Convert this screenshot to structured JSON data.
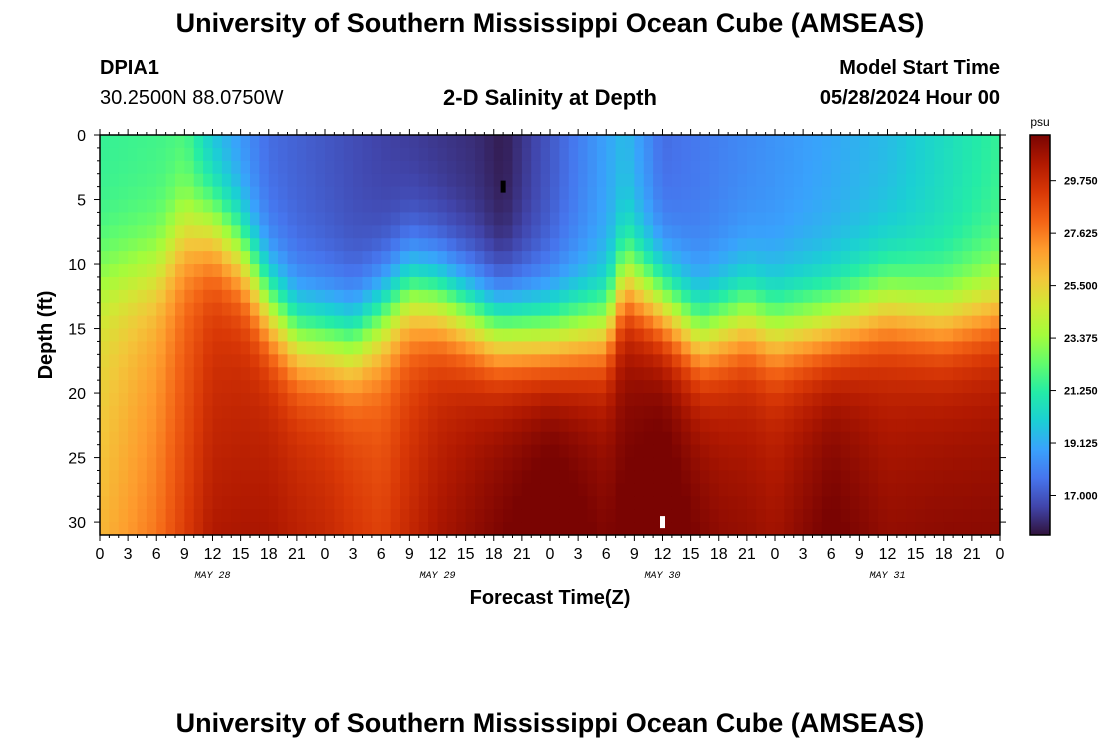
{
  "header": {
    "title": "University of Southern Mississippi Ocean Cube (AMSEAS)",
    "station": "DPIA1",
    "coords": "30.2500N  88.0750W",
    "subtitle": "2-D Salinity at Depth",
    "model_label": "Model Start Time",
    "model_time": "05/28/2024 Hour 00"
  },
  "footer": {
    "title": "University of Southern Mississippi Ocean Cube (AMSEAS)"
  },
  "colors": {
    "scale": [
      "#30123b",
      "#4145ab",
      "#4675ed",
      "#39a2fc",
      "#1bcfd4",
      "#24eca6",
      "#61fc6c",
      "#a4fc3b",
      "#d1e834",
      "#f3c63a",
      "#fe9b2d",
      "#f36315",
      "#d93806",
      "#b11901",
      "#7a0402"
    ]
  },
  "chart_data": {
    "type": "heatmap",
    "title": "2-D Salinity at Depth",
    "xlabel": "Forecast Time(Z)",
    "ylabel": "Depth (ft)",
    "x_tick_labels": [
      "0",
      "3",
      "6",
      "9",
      "12",
      "15",
      "18",
      "21",
      "0",
      "3",
      "6",
      "9",
      "12",
      "15",
      "18",
      "21",
      "0",
      "3",
      "6",
      "9",
      "12",
      "15",
      "18",
      "21",
      "0",
      "3",
      "6",
      "9",
      "12",
      "15",
      "18",
      "21",
      "0"
    ],
    "x_range_hours": [
      0,
      96
    ],
    "date_labels": [
      {
        "label": "MAY 28",
        "hour": 12
      },
      {
        "label": "MAY 29",
        "hour": 36
      },
      {
        "label": "MAY 30",
        "hour": 60
      },
      {
        "label": "MAY 31",
        "hour": 84
      }
    ],
    "y_ticks": [
      0,
      5,
      10,
      15,
      20,
      25,
      30
    ],
    "y_tick_labels": [
      "0",
      "5",
      "10",
      "15",
      "20",
      "25",
      "30"
    ],
    "ylim": [
      0,
      31
    ],
    "colorbar": {
      "unit": "psu",
      "range": [
        15.4,
        31.6
      ],
      "ticks": [
        17.0,
        19.125,
        21.25,
        23.375,
        25.5,
        27.625,
        29.75
      ],
      "tick_labels": [
        "17.000",
        "19.125",
        "21.250",
        "23.375",
        "25.500",
        "27.625",
        "29.750"
      ]
    },
    "halocline_depth_ft": [
      {
        "hour": 0,
        "depth": 11
      },
      {
        "hour": 6,
        "depth": 10
      },
      {
        "hour": 9,
        "depth": 7
      },
      {
        "hour": 12,
        "depth": 7
      },
      {
        "hour": 15,
        "depth": 9
      },
      {
        "hour": 18,
        "depth": 13
      },
      {
        "hour": 21,
        "depth": 15.5
      },
      {
        "hour": 27,
        "depth": 16
      },
      {
        "hour": 30,
        "depth": 14
      },
      {
        "hour": 33,
        "depth": 12
      },
      {
        "hour": 36,
        "depth": 12.5
      },
      {
        "hour": 42,
        "depth": 15
      },
      {
        "hour": 48,
        "depth": 15.5
      },
      {
        "hour": 54,
        "depth": 15
      },
      {
        "hour": 56,
        "depth": 11
      },
      {
        "hour": 60,
        "depth": 13
      },
      {
        "hour": 64,
        "depth": 15.5
      },
      {
        "hour": 69,
        "depth": 14
      },
      {
        "hour": 72,
        "depth": 15
      },
      {
        "hour": 78,
        "depth": 14.5
      },
      {
        "hour": 84,
        "depth": 13
      },
      {
        "hour": 90,
        "depth": 14
      },
      {
        "hour": 96,
        "depth": 13
      }
    ],
    "surface_salinity_psu": [
      {
        "hour": 0,
        "value": 21.5
      },
      {
        "hour": 9,
        "value": 21.8
      },
      {
        "hour": 12,
        "value": 19.5
      },
      {
        "hour": 18,
        "value": 17.5
      },
      {
        "hour": 30,
        "value": 16.5
      },
      {
        "hour": 40,
        "value": 16.0
      },
      {
        "hour": 43,
        "value": 15.6
      },
      {
        "hour": 48,
        "value": 17.0
      },
      {
        "hour": 56,
        "value": 19.5
      },
      {
        "hour": 60,
        "value": 17.5
      },
      {
        "hour": 66,
        "value": 18.0
      },
      {
        "hour": 72,
        "value": 18.5
      },
      {
        "hour": 84,
        "value": 19.5
      },
      {
        "hour": 96,
        "value": 21.5
      }
    ],
    "bottom_salinity_psu": [
      {
        "hour": 0,
        "value": 25.0
      },
      {
        "hour": 6,
        "value": 26.5
      },
      {
        "hour": 12,
        "value": 29.0
      },
      {
        "hour": 18,
        "value": 29.5
      },
      {
        "hour": 24,
        "value": 29.0
      },
      {
        "hour": 30,
        "value": 28.0
      },
      {
        "hour": 36,
        "value": 29.5
      },
      {
        "hour": 42,
        "value": 30.5
      },
      {
        "hour": 48,
        "value": 31.3
      },
      {
        "hour": 54,
        "value": 30.5
      },
      {
        "hour": 60,
        "value": 31.2
      },
      {
        "hour": 66,
        "value": 30.2
      },
      {
        "hour": 72,
        "value": 29.8
      },
      {
        "hour": 78,
        "value": 30.8
      },
      {
        "hour": 84,
        "value": 30.0
      },
      {
        "hour": 90,
        "value": 30.2
      },
      {
        "hour": 96,
        "value": 30.2
      }
    ],
    "markers": [
      {
        "hour": 43,
        "depth": 4,
        "color": "#000000"
      },
      {
        "hour": 60,
        "depth": 30,
        "color": "#ffffff"
      }
    ]
  }
}
